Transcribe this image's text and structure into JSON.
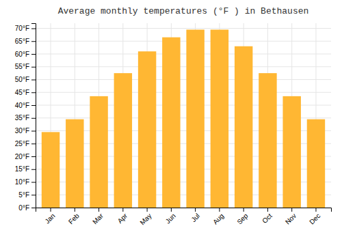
{
  "chart_data": {
    "type": "bar",
    "title": "Average monthly temperatures (°F ) in Bethausen",
    "categories": [
      "Jan",
      "Feb",
      "Mar",
      "Apr",
      "May",
      "Jun",
      "Jul",
      "Aug",
      "Sep",
      "Oct",
      "Nov",
      "Dec"
    ],
    "values": [
      29.5,
      34.5,
      43.5,
      52.5,
      61.0,
      66.5,
      69.5,
      69.5,
      63.0,
      52.5,
      43.5,
      34.5
    ],
    "color": "#FFB733",
    "ylim": [
      0,
      72
    ],
    "yticks": [
      {
        "value": 0,
        "label": "0°F"
      },
      {
        "value": 5,
        "label": "5°F"
      },
      {
        "value": 10,
        "label": "10°F"
      },
      {
        "value": 15,
        "label": "15°F"
      },
      {
        "value": 20,
        "label": "20°F"
      },
      {
        "value": 25,
        "label": "25°F"
      },
      {
        "value": 30,
        "label": "30°F"
      },
      {
        "value": 35,
        "label": "35°F"
      },
      {
        "value": 40,
        "label": "40°F"
      },
      {
        "value": 45,
        "label": "45°F"
      },
      {
        "value": 50,
        "label": "50°F"
      },
      {
        "value": 55,
        "label": "55°F"
      },
      {
        "value": 60,
        "label": "60°F"
      },
      {
        "value": 65,
        "label": "65°F"
      },
      {
        "value": 70,
        "label": "70°F"
      }
    ],
    "grid": true
  }
}
